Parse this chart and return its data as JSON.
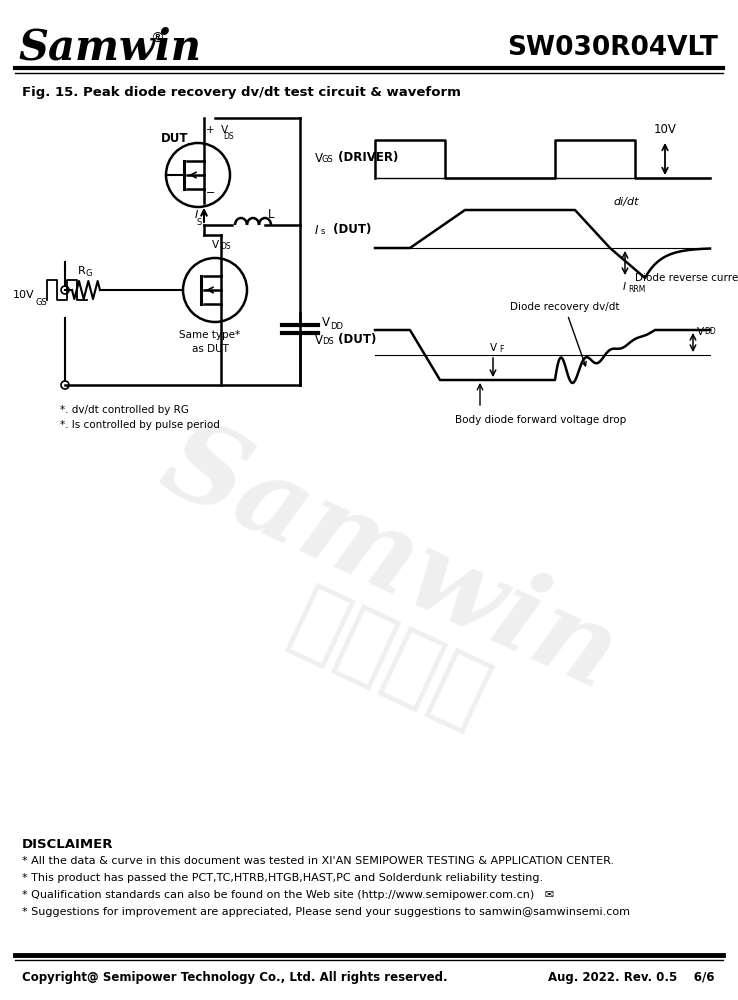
{
  "title_company": "Samwin",
  "title_part": "SW030R04VLT",
  "fig_title": "Fig. 15. Peak diode recovery dv/dt test circuit & waveform",
  "disclaimer_title": "DISCLAIMER",
  "disclaimer_lines": [
    "* All the data & curve in this document was tested in XI'AN SEMIPOWER TESTING & APPLICATION CENTER.",
    "* This product has passed the PCT,TC,HTRB,HTGB,HAST,PC and Solderdunk reliability testing.",
    "* Qualification standards can also be found on the Web site (http://www.semipower.com.cn)   ✉",
    "* Suggestions for improvement are appreciated, Please send your suggestions to samwin@samwinsemi.com"
  ],
  "footer_left": "Copyright@ Semipower Technology Co., Ltd. All rights reserved.",
  "footer_right": "Aug. 2022. Rev. 0.5    6/6",
  "watermark1": "Samwin",
  "watermark2": "内部保密",
  "background_color": "#ffffff"
}
